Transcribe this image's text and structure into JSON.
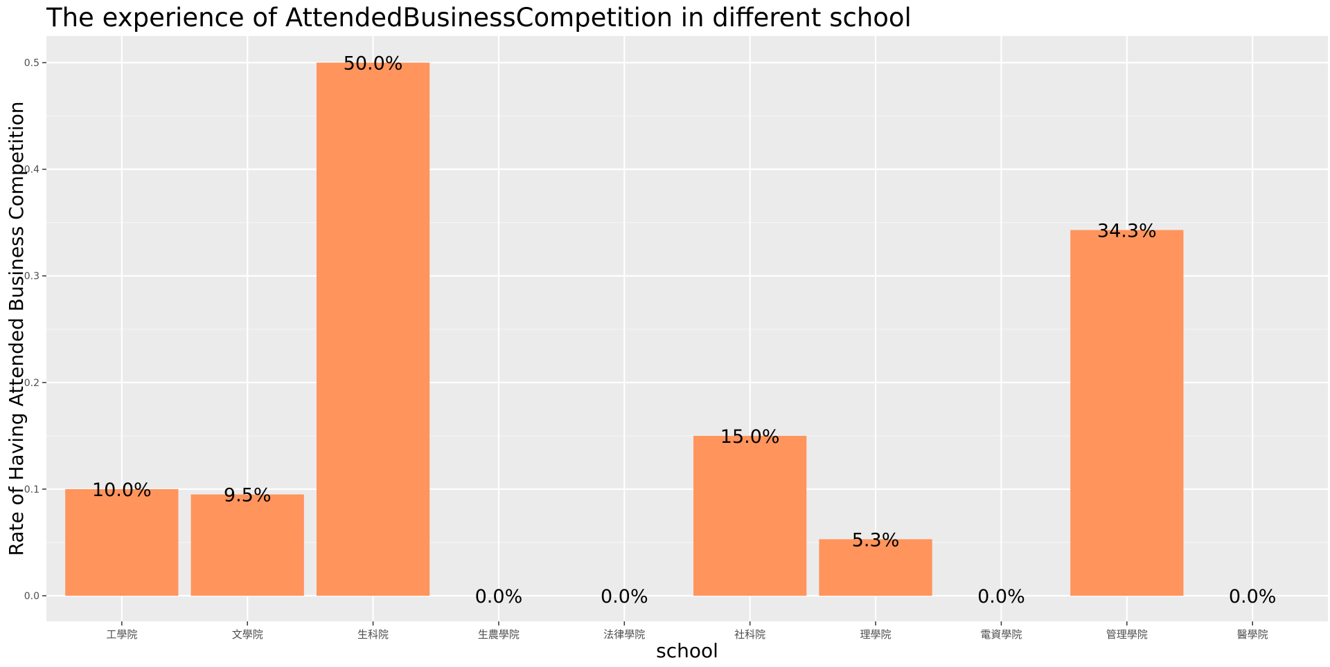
{
  "chart_data": {
    "type": "bar",
    "title": "The experience of AttendedBusinessCompetition in different school",
    "xlabel": "school",
    "ylabel": "Rate of Having Attended Business Competition",
    "categories": [
      "工學院",
      "文學院",
      "生科院",
      "生農學院",
      "法律學院",
      "社科院",
      "理學院",
      "電資學院",
      "管理學院",
      "醫學院"
    ],
    "values": [
      0.1,
      0.095,
      0.5,
      0.0,
      0.0,
      0.15,
      0.053,
      0.0,
      0.343,
      0.0
    ],
    "data_labels": [
      "10.0%",
      "9.5%",
      "50.0%",
      "0.0%",
      "0.0%",
      "15.0%",
      "5.3%",
      "0.0%",
      "34.3%",
      "0.0%"
    ],
    "yticks": [
      0.0,
      0.1,
      0.2,
      0.3,
      0.4,
      0.5
    ],
    "ytick_labels": [
      "0.0",
      "0.1",
      "0.2",
      "0.3",
      "0.4",
      "0.5"
    ],
    "ylim": [
      -0.024,
      0.525
    ],
    "grid": true,
    "legend": "none",
    "colors": {
      "bar": "#FF945C",
      "panel": "#EBEBEB",
      "grid_major": "#FFFFFF",
      "grid_minor": "#F5F5F5",
      "tick_text": "#4D4D4D",
      "text": "#000000"
    }
  }
}
